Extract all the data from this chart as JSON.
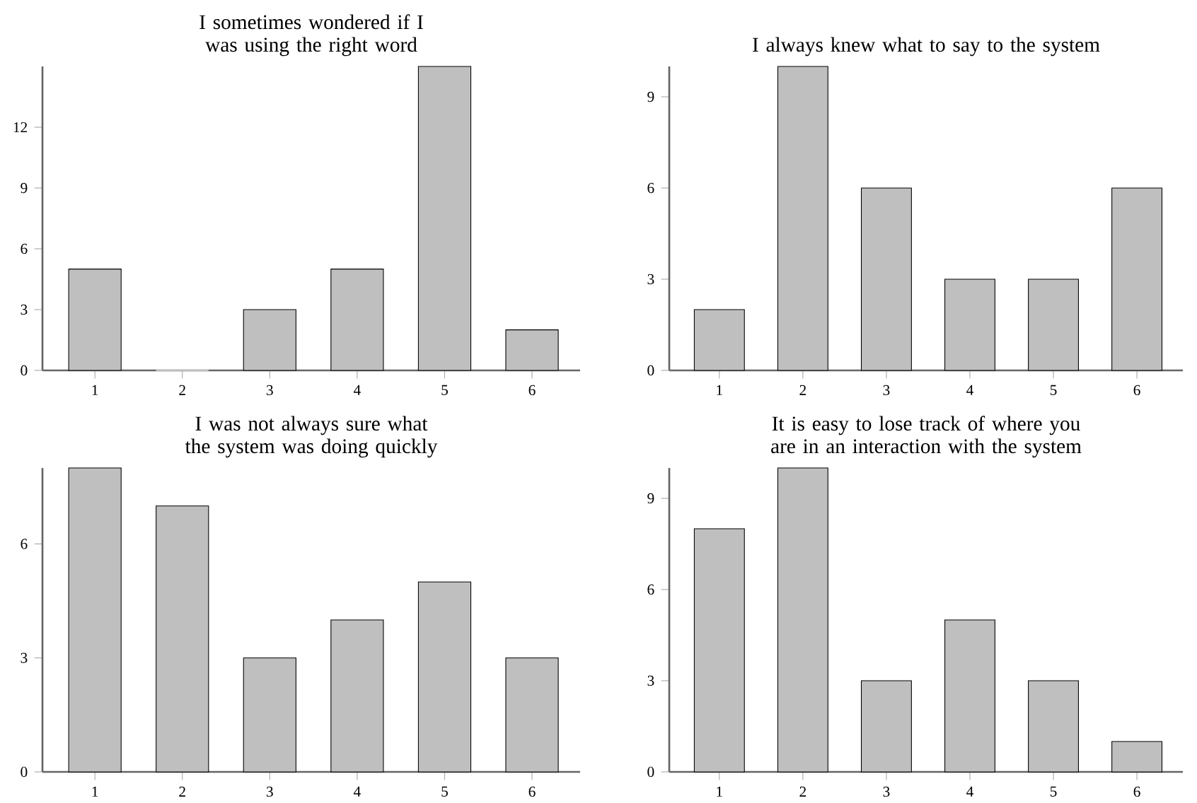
{
  "chart_data": [
    {
      "type": "bar",
      "title": "I sometimes wondered if I was using the right word",
      "categories": [
        "1",
        "2",
        "3",
        "4",
        "5",
        "6"
      ],
      "values": [
        5,
        0,
        3,
        5,
        15,
        2
      ],
      "color": "#bfbfbf",
      "ylim": [
        0,
        15
      ],
      "yticks": [
        0,
        3,
        6,
        9,
        12
      ],
      "grid": false
    },
    {
      "type": "bar",
      "title": "I always knew what to say to the system",
      "categories": [
        "1",
        "2",
        "3",
        "4",
        "5",
        "6"
      ],
      "values": [
        2,
        10,
        6,
        3,
        3,
        6
      ],
      "color": "#bfbfbf",
      "ylim": [
        0,
        10
      ],
      "yticks": [
        0,
        3,
        6,
        9
      ],
      "grid": false
    },
    {
      "type": "bar",
      "title": "I was not always sure what the system was doing quickly",
      "categories": [
        "1",
        "2",
        "3",
        "4",
        "5",
        "6"
      ],
      "values": [
        8,
        7,
        3,
        4,
        5,
        3
      ],
      "color": "#bfbfbf",
      "ylim": [
        0,
        8
      ],
      "yticks": [
        0,
        3,
        6
      ],
      "grid": false
    },
    {
      "type": "bar",
      "title": "It is easy to lose track of where you are in an interaction with the system",
      "categories": [
        "1",
        "2",
        "3",
        "4",
        "5",
        "6"
      ],
      "values": [
        8,
        10,
        3,
        5,
        3,
        1
      ],
      "color": "#bfbfbf",
      "ylim": [
        0,
        10
      ],
      "yticks": [
        0,
        3,
        6,
        9
      ],
      "grid": false
    }
  ]
}
